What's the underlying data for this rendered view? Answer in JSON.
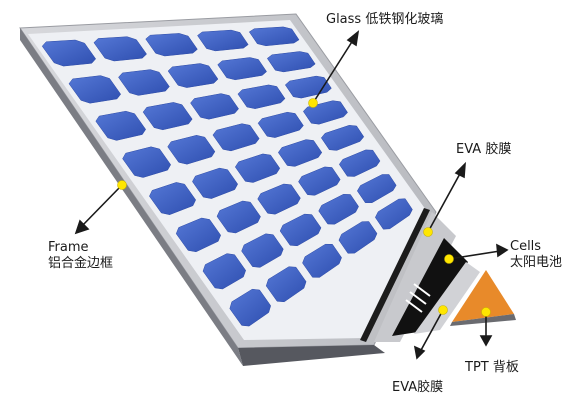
{
  "labels": {
    "glass": {
      "en": "Glass",
      "zh": "低铁钢化玻璃"
    },
    "eva_top": {
      "en": "EVA",
      "zh": "胶膜"
    },
    "cells": {
      "en": "Cells",
      "zh": "太阳电池"
    },
    "frame": {
      "en": "Frame",
      "zh": "铝合金边框"
    },
    "tpt": {
      "en": "TPT",
      "zh": "背板"
    },
    "eva_bottom": {
      "en": "EVA",
      "zh": "胶膜"
    }
  },
  "colors": {
    "cell_blue": "#3f62c8",
    "cell_dark": "#2c4aa6",
    "frame_gray": "#cfd0d4",
    "frame_dark": "#5d5f66",
    "glass_edge": "#e9ebef",
    "eva_layer": "#c6c7cb",
    "cell_layer": "#121212",
    "tpt_orange": "#e88a2a",
    "marker_yellow": "#ffe600"
  },
  "cell_grid": {
    "rows": 8,
    "cols": 5
  }
}
